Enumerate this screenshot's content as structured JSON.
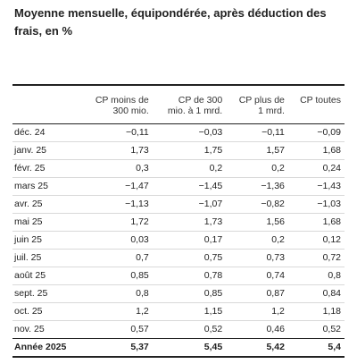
{
  "title": "Moyenne mensuelle, équipondérée, après déduction des frais, en %",
  "columns": [
    {
      "line1": "CP moins de",
      "line2": "300 mio."
    },
    {
      "line1": "CP de 300",
      "line2": "mio. à 1 mrd."
    },
    {
      "line1": "CP plus de",
      "line2": "1 mrd."
    },
    {
      "line1": "CP toutes",
      "line2": ""
    }
  ],
  "rows": [
    {
      "label": "déc. 24",
      "values": [
        "−0,11",
        "−0,03",
        "−0,11",
        "−0,09"
      ]
    },
    {
      "label": "janv. 25",
      "values": [
        "1,73",
        "1,75",
        "1,57",
        "1,68"
      ]
    },
    {
      "label": "févr. 25",
      "values": [
        "0,3",
        "0,2",
        "0,2",
        "0,24"
      ]
    },
    {
      "label": "mars 25",
      "values": [
        "−1,47",
        "−1,45",
        "−1,36",
        "−1,43"
      ]
    },
    {
      "label": "avr. 25",
      "values": [
        "−1,13",
        "−1,07",
        "−0,82",
        "−1,03"
      ]
    },
    {
      "label": "mai 25",
      "values": [
        "1,72",
        "1,73",
        "1,56",
        "1,68"
      ]
    },
    {
      "label": "juin 25",
      "values": [
        "0,03",
        "0,17",
        "0,2",
        "0,12"
      ]
    },
    {
      "label": "juil. 25",
      "values": [
        "0,7",
        "0,75",
        "0,73",
        "0,72"
      ]
    },
    {
      "label": "août 25",
      "values": [
        "0,85",
        "0,78",
        "0,74",
        "0,8"
      ]
    },
    {
      "label": "sept. 25",
      "values": [
        "0,8",
        "0,85",
        "0,87",
        "0,84"
      ]
    },
    {
      "label": "oct. 25",
      "values": [
        "1,2",
        "1,15",
        "1,2",
        "1,18"
      ]
    },
    {
      "label": "nov. 25",
      "values": [
        "0,57",
        "0,52",
        "0,46",
        "0,52"
      ]
    }
  ],
  "total": {
    "label": "Année 2025",
    "values": [
      "5,37",
      "5,45",
      "5,42",
      "5,4"
    ]
  }
}
